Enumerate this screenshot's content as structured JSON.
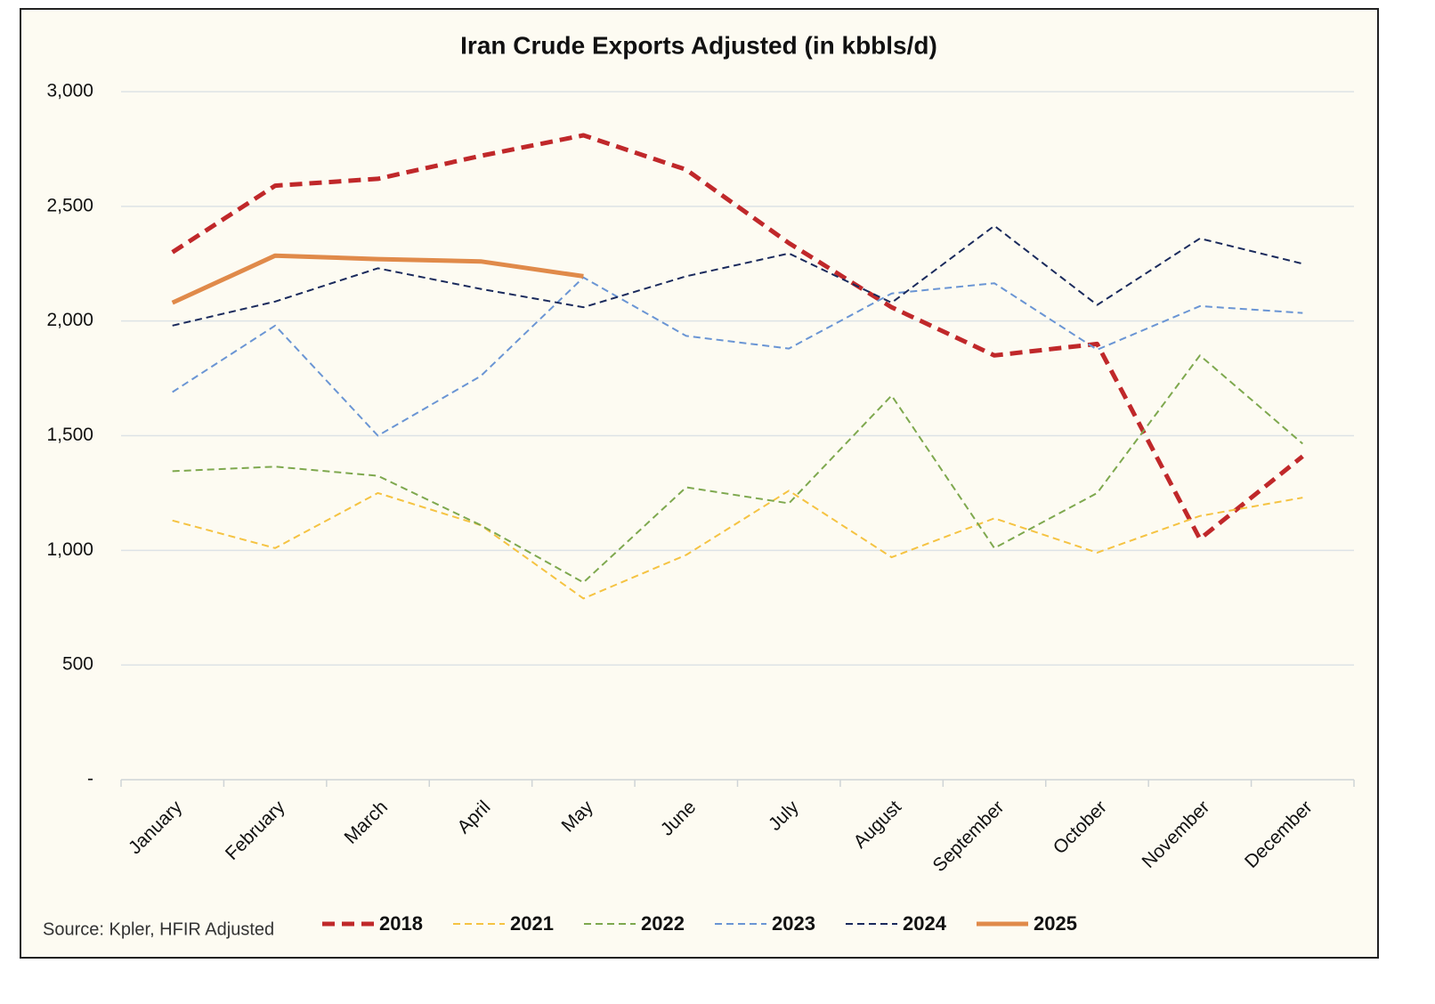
{
  "chart_data": {
    "type": "line",
    "title": "Iran Crude Exports Adjusted (in kbbls/d)",
    "source": "Source: Kpler, HFIR Adjusted",
    "categories": [
      "January",
      "February",
      "March",
      "April",
      "May",
      "June",
      "July",
      "August",
      "September",
      "October",
      "November",
      "December"
    ],
    "ylim": [
      0,
      3000
    ],
    "yticks": [
      {
        "value": 0,
        "label": "-"
      },
      500,
      {
        "value": 1000,
        "label": "1,000"
      },
      {
        "value": 1500,
        "label": "1,500"
      },
      {
        "value": 2000,
        "label": "2,000"
      },
      {
        "value": 2500,
        "label": "2,500"
      },
      {
        "value": 3000,
        "label": "3,000"
      }
    ],
    "grid": true,
    "legend": "bottom",
    "series": [
      {
        "name": "2018",
        "color": "#c0282a",
        "line_style": "dashed",
        "line_weight": "thick",
        "values": [
          2300,
          2590,
          2620,
          2720,
          2810,
          2660,
          2340,
          2060,
          1850,
          1900,
          1050,
          1410
        ]
      },
      {
        "name": "2021",
        "color": "#f5c342",
        "line_style": "dashed",
        "line_weight": "thin",
        "values": [
          1130,
          1010,
          1250,
          1110,
          790,
          980,
          1260,
          970,
          1140,
          990,
          1150,
          1230
        ]
      },
      {
        "name": "2022",
        "color": "#7ea84e",
        "line_style": "dashed",
        "line_weight": "thin",
        "values": [
          1345,
          1365,
          1325,
          1110,
          860,
          1275,
          1205,
          1675,
          1010,
          1250,
          1850,
          1465
        ]
      },
      {
        "name": "2023",
        "color": "#6a95d4",
        "line_style": "dashed",
        "line_weight": "thin",
        "values": [
          1690,
          1980,
          1500,
          1760,
          2190,
          1935,
          1880,
          2120,
          2165,
          1875,
          2065,
          2035
        ]
      },
      {
        "name": "2024",
        "color": "#1a2a5c",
        "line_style": "dashed",
        "line_weight": "thin",
        "values": [
          1980,
          2085,
          2230,
          2140,
          2060,
          2195,
          2295,
          2080,
          2415,
          2070,
          2360,
          2250
        ]
      },
      {
        "name": "2025",
        "color": "#e08a4a",
        "line_style": "solid",
        "line_weight": "thick",
        "values": [
          2080,
          2285,
          2270,
          2260,
          2195,
          null,
          null,
          null,
          null,
          null,
          null,
          null
        ]
      }
    ]
  }
}
